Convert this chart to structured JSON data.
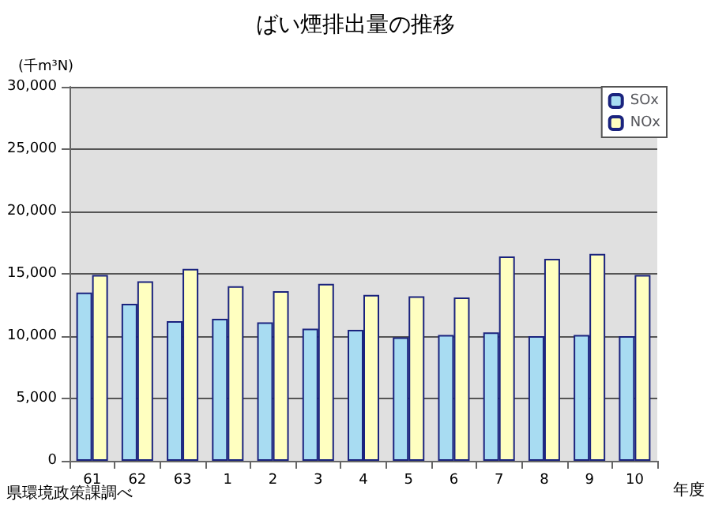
{
  "chart_data": {
    "type": "bar",
    "title": "ばい煙排出量の推移",
    "ylabel": "(千m³N)",
    "xlabel": "年度",
    "annotations": [
      "県環境政策課調べ"
    ],
    "categories": [
      "61",
      "62",
      "63",
      "1",
      "2",
      "3",
      "4",
      "5",
      "6",
      "7",
      "8",
      "9",
      "10"
    ],
    "series": [
      {
        "name": "SOx",
        "color": "#a8dcf2",
        "values": [
          13500,
          12600,
          11200,
          11400,
          11100,
          10600,
          10500,
          9900,
          10100,
          10300,
          10000,
          10100,
          10000
        ]
      },
      {
        "name": "NOx",
        "color": "#ffffc0",
        "values": [
          14900,
          14400,
          15400,
          14000,
          13600,
          14200,
          13300,
          13200,
          13100,
          16400,
          16200,
          16600,
          14900
        ]
      }
    ],
    "ylim": [
      0,
      30000
    ],
    "yticks": [
      0,
      {
        "value": 5000,
        "label": "5,000"
      },
      {
        "value": 10000,
        "label": "10,000"
      },
      {
        "value": 15000,
        "label": "15,000"
      },
      {
        "value": 20000,
        "label": "20,000"
      },
      {
        "value": 25000,
        "label": "25,000"
      },
      {
        "value": 30000,
        "label": "30,000"
      }
    ],
    "grid": "y",
    "legend": "top right"
  }
}
